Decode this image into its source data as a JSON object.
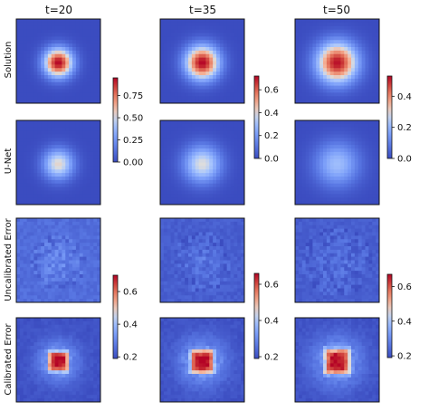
{
  "chart_data": {
    "type": "heatmap",
    "columns": [
      "t=20",
      "t=35",
      "t=50"
    ],
    "rows": [
      "Solution",
      "U-Net",
      "Uncalibrated Error",
      "Calibrated Error"
    ],
    "colormap": "coolwarm",
    "colors": {
      "low": "#3b4cc0",
      "mid": "#dddddd",
      "high": "#b40426"
    },
    "grid": false,
    "panels": [
      {
        "row": "Solution",
        "column": "t=20",
        "peak": 0.95,
        "blob_radius": 0.17,
        "noise": 0.0
      },
      {
        "row": "Solution",
        "column": "t=35",
        "peak": 0.72,
        "blob_radius": 0.2,
        "noise": 0.0
      },
      {
        "row": "Solution",
        "column": "t=50",
        "peak": 0.52,
        "blob_radius": 0.24,
        "noise": 0.0
      },
      {
        "row": "U-Net",
        "column": "t=20",
        "peak": 0.55,
        "blob_radius": 0.18,
        "noise": 0.0
      },
      {
        "row": "U-Net",
        "column": "t=35",
        "peak": 0.4,
        "blob_radius": 0.22,
        "noise": 0.0
      },
      {
        "row": "U-Net",
        "column": "t=50",
        "peak": 0.22,
        "blob_radius": 0.26,
        "noise": 0.0
      },
      {
        "row": "Uncalibrated Error",
        "column": "t=20",
        "peak": 0.3,
        "blob_radius": 0.2,
        "noise": 0.03,
        "base": 0.25
      },
      {
        "row": "Uncalibrated Error",
        "column": "t=35",
        "peak": 0.26,
        "blob_radius": 0.22,
        "noise": 0.025,
        "base": 0.22
      },
      {
        "row": "Uncalibrated Error",
        "column": "t=50",
        "peak": 0.25,
        "blob_radius": 0.26,
        "noise": 0.025,
        "base": 0.22
      },
      {
        "row": "Calibrated Error",
        "column": "t=20",
        "peak": 0.7,
        "blob_radius": 0.13,
        "noise": 0.02,
        "base": 0.2,
        "square": true
      },
      {
        "row": "Calibrated Error",
        "column": "t=35",
        "peak": 0.66,
        "blob_radius": 0.15,
        "noise": 0.02,
        "base": 0.2,
        "square": true
      },
      {
        "row": "Calibrated Error",
        "column": "t=50",
        "peak": 0.67,
        "blob_radius": 0.16,
        "noise": 0.02,
        "base": 0.2,
        "square": true
      }
    ],
    "colorbars": [
      {
        "row": "Solution",
        "column": "t=20",
        "range": [
          0.0,
          0.95
        ],
        "ticks": [
          0.0,
          0.25,
          0.5,
          0.75
        ],
        "tick_labels": [
          "0.00",
          "0.25",
          "0.50",
          "0.75"
        ]
      },
      {
        "row": "Solution",
        "column": "t=35",
        "range": [
          0.0,
          0.72
        ],
        "ticks": [
          0.0,
          0.2,
          0.4,
          0.6
        ],
        "tick_labels": [
          "0.0",
          "0.2",
          "0.4",
          "0.6"
        ]
      },
      {
        "row": "Solution",
        "column": "t=50",
        "range": [
          0.0,
          0.53
        ],
        "ticks": [
          0.0,
          0.2,
          0.4
        ],
        "tick_labels": [
          "0.0",
          "0.2",
          "0.4"
        ]
      },
      {
        "row": "Calibrated Error",
        "column": "t=20",
        "range": [
          0.19,
          0.7
        ],
        "ticks": [
          0.2,
          0.4,
          0.6
        ],
        "tick_labels": [
          "0.2",
          "0.4",
          "0.6"
        ]
      },
      {
        "row": "Calibrated Error",
        "column": "t=35",
        "range": [
          0.19,
          0.66
        ],
        "ticks": [
          0.2,
          0.4,
          0.6
        ],
        "tick_labels": [
          "0.2",
          "0.4",
          "0.6"
        ]
      },
      {
        "row": "Calibrated Error",
        "column": "t=50",
        "range": [
          0.19,
          0.67
        ],
        "ticks": [
          0.2,
          0.4,
          0.6
        ],
        "tick_labels": [
          "0.2",
          "0.4",
          "0.6"
        ]
      }
    ]
  }
}
